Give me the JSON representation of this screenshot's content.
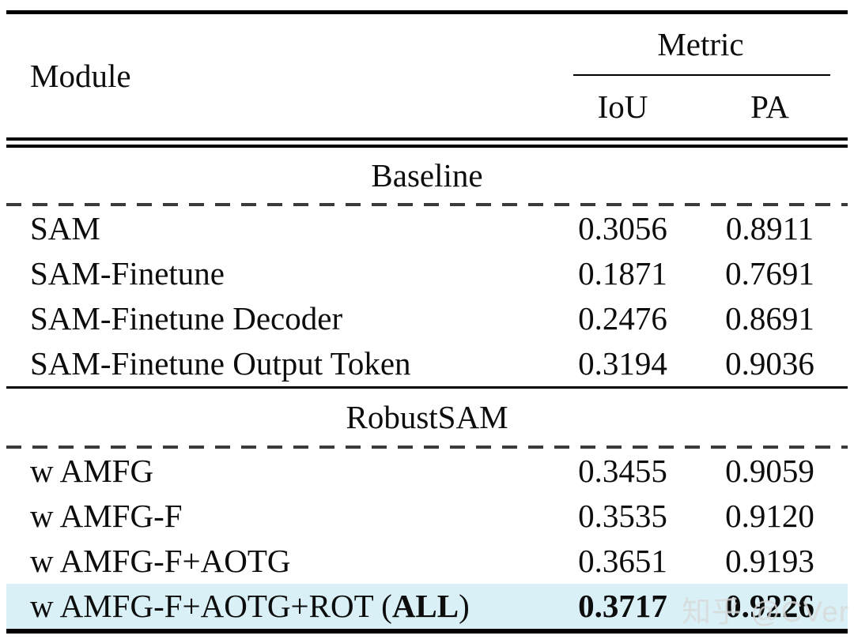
{
  "table": {
    "header": {
      "module_label": "Module",
      "metric_group_label": "Metric",
      "metric_columns": {
        "iou": "IoU",
        "pa": "PA"
      }
    },
    "sections": [
      {
        "title": "Baseline",
        "rows": [
          {
            "module": "SAM",
            "iou": "0.3056",
            "pa": "0.8911"
          },
          {
            "module": "SAM-Finetune",
            "iou": "0.1871",
            "pa": "0.7691"
          },
          {
            "module": "SAM-Finetune Decoder",
            "iou": "0.2476",
            "pa": "0.8691"
          },
          {
            "module": "SAM-Finetune Output Token",
            "iou": "0.3194",
            "pa": "0.9036"
          }
        ]
      },
      {
        "title": "RobustSAM",
        "rows": [
          {
            "module": "w AMFG",
            "iou": "0.3455",
            "pa": "0.9059"
          },
          {
            "module": "w AMFG-F",
            "iou": "0.3535",
            "pa": "0.9120"
          },
          {
            "module": "w AMFG-F+AOTG",
            "iou": "0.3651",
            "pa": "0.9193"
          },
          {
            "module_prefix": "w AMFG-F+AOTG+ROT (",
            "module_bold": "ALL",
            "module_suffix": ")",
            "iou": "0.3717",
            "pa": "0.9226"
          }
        ]
      }
    ]
  },
  "watermark": {
    "text": "知乎 @CVer"
  },
  "colors": {
    "highlight": "#d8f0f6",
    "rule": "#000000",
    "dash": "#3a3a3a",
    "watermark": "#d9d9d9",
    "text": "#0d0d0d"
  }
}
